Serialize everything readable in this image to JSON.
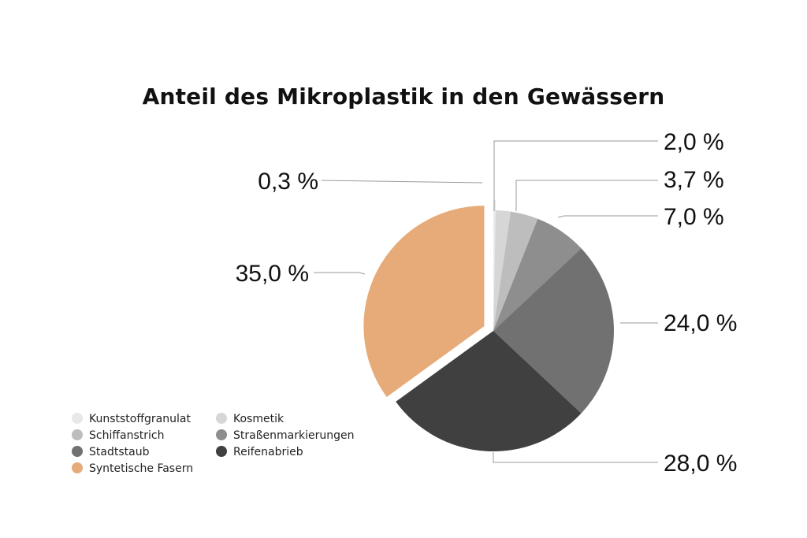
{
  "chart_data": {
    "type": "pie",
    "title": "Anteil des Mikroplastik in den Gewässern",
    "slices": [
      {
        "name": "Kunststoffgranulat",
        "value": 0.3,
        "label": "0,3 %",
        "color": "#e8e8e8",
        "exploded": true
      },
      {
        "name": "Kosmetik",
        "value": 2.0,
        "label": "2,0 %",
        "color": "#d6d6d6",
        "exploded": false
      },
      {
        "name": "Schiffanstrich",
        "value": 3.7,
        "label": "3,7 %",
        "color": "#bdbdbd",
        "exploded": false
      },
      {
        "name": "Straßenmarkierungen",
        "value": 7.0,
        "label": "7,0 %",
        "color": "#8e8e8e",
        "exploded": false
      },
      {
        "name": "Stadtstaub",
        "value": 24.0,
        "label": "24,0 %",
        "color": "#717171",
        "exploded": false
      },
      {
        "name": "Reifenabrieb",
        "value": 28.0,
        "label": "28,0 %",
        "color": "#404040",
        "exploded": false
      },
      {
        "name": "Syntetische Fasern",
        "value": 35.0,
        "label": "35,0 %",
        "color": "#e6ab78",
        "exploded": true
      }
    ],
    "legend_position": "bottom-left",
    "legend_order": [
      "Kunststoffgranulat",
      "Kosmetik",
      "Schiffanstrich",
      "Straßenmarkierungen",
      "Stadtstaub",
      "Reifenabrieb",
      "Syntetische Fasern"
    ]
  }
}
